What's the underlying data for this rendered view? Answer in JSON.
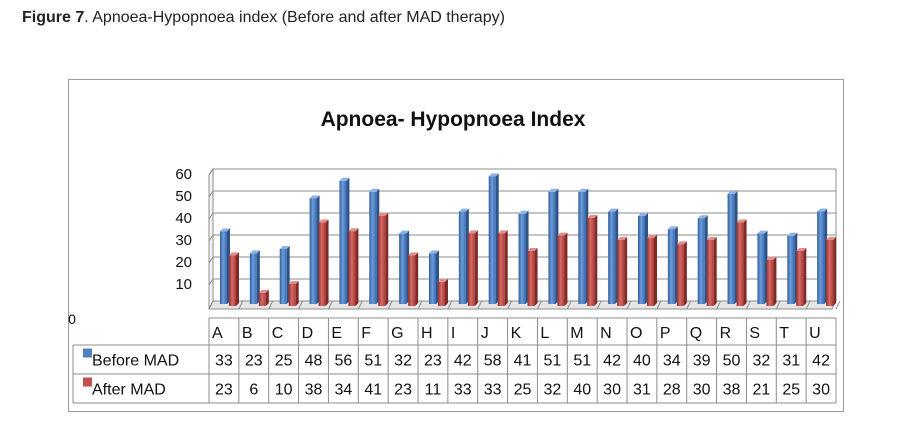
{
  "caption": {
    "label": "Figure 7",
    "text": ". Apnoea-Hypopnoea index (Before and after MAD therapy)"
  },
  "chart_data": {
    "type": "bar",
    "title": "Apnoea- Hypopnoea Index",
    "categories": [
      "A",
      "B",
      "C",
      "D",
      "E",
      "F",
      "G",
      "H",
      "I",
      "J",
      "K",
      "L",
      "M",
      "N",
      "O",
      "P",
      "Q",
      "R",
      "S",
      "T",
      "U"
    ],
    "series": [
      {
        "name": "Before MAD",
        "color": "#4f81bd",
        "values": [
          33,
          23,
          25,
          48,
          56,
          51,
          32,
          23,
          42,
          58,
          41,
          51,
          51,
          42,
          40,
          34,
          39,
          50,
          32,
          31,
          42
        ]
      },
      {
        "name": "After MAD",
        "color": "#c0504d",
        "values": [
          23,
          6,
          10,
          38,
          34,
          41,
          23,
          11,
          33,
          33,
          25,
          32,
          40,
          30,
          31,
          28,
          30,
          38,
          21,
          25,
          30
        ]
      }
    ],
    "yticks": [
      "60",
      "50",
      "40",
      "30",
      "20",
      "10"
    ],
    "ytick_values": [
      60,
      50,
      40,
      30,
      20,
      10
    ],
    "y_origin_label": "0",
    "ylim": [
      0,
      60
    ],
    "grid": true,
    "legend": "data-table"
  }
}
